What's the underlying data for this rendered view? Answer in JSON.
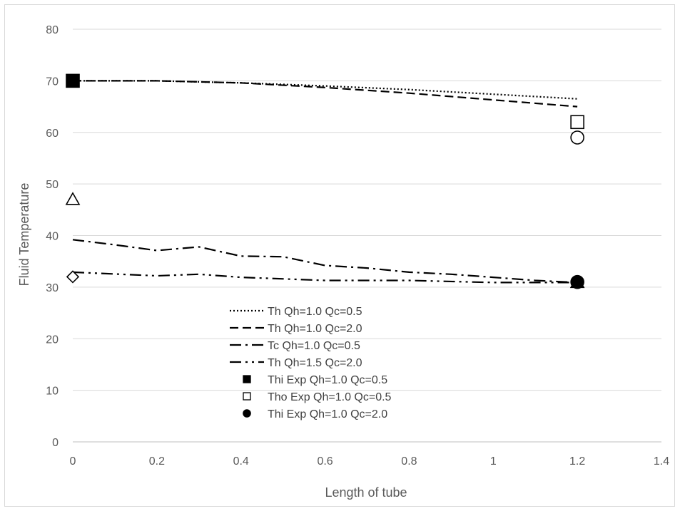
{
  "chart_data": {
    "type": "line",
    "title": "",
    "xlabel": "Length of tube",
    "ylabel": "Fluid Temperature",
    "xlim": [
      0,
      1.4
    ],
    "ylim": [
      0,
      80
    ],
    "xticks": [
      0,
      0.2,
      0.4,
      0.6,
      0.8,
      1,
      1.2,
      1.4
    ],
    "xtick_labels": [
      "0",
      "0.2",
      "0.4",
      "0.6",
      "0.8",
      "1",
      "1.2",
      "1.4"
    ],
    "yticks": [
      0,
      10,
      20,
      30,
      40,
      50,
      60,
      70,
      80
    ],
    "ytick_labels": [
      "0",
      "10",
      "20",
      "30",
      "40",
      "50",
      "60",
      "70",
      "80"
    ],
    "grid": "horizontal",
    "legend_position": "inside-bottom-center",
    "line_series": [
      {
        "name": "Th Qh=1.0 Qc=0.5",
        "dash": "dotted",
        "x": [
          0,
          0.2,
          0.4,
          0.6,
          0.8,
          1.0,
          1.2
        ],
        "y": [
          70,
          70,
          69.6,
          69.0,
          68.3,
          67.4,
          66.5
        ]
      },
      {
        "name": "Th Qh=1.0 Qc=2.0",
        "dash": "dashed",
        "x": [
          0,
          0.2,
          0.4,
          0.6,
          0.8,
          1.0,
          1.2
        ],
        "y": [
          70,
          70,
          69.6,
          68.7,
          67.6,
          66.3,
          65.0
        ]
      },
      {
        "name": "Tc Qh=1.0 Qc=0.5",
        "dash": "dash-dot",
        "x": [
          0,
          0.1,
          0.2,
          0.3,
          0.4,
          0.5,
          0.6,
          0.7,
          0.8,
          0.9,
          1.0,
          1.1,
          1.2
        ],
        "y": [
          39.2,
          38.2,
          37.1,
          37.8,
          36.0,
          35.9,
          34.2,
          33.7,
          32.9,
          32.5,
          31.9,
          31.3,
          30.9
        ]
      },
      {
        "name": "Th Qh=1.5 Qc=2.0",
        "dash": "dash-dot-dot",
        "x": [
          0,
          0.2,
          0.3,
          0.4,
          0.6,
          0.8,
          1.0,
          1.2
        ],
        "y": [
          32.9,
          32.2,
          32.5,
          31.9,
          31.3,
          31.3,
          30.9,
          30.9
        ]
      }
    ],
    "marker_series": [
      {
        "name": "Thi Exp Qh=1.0 Qc=0.5",
        "marker": "square-filled",
        "x": [
          0
        ],
        "y": [
          70
        ]
      },
      {
        "name": "Tho Exp Qh=1.0 Qc=0.5",
        "marker": "square-open",
        "x": [
          1.2
        ],
        "y": [
          62
        ]
      },
      {
        "name": "Thi Exp Qh=1.0 Qc=2.0",
        "marker": "circle-filled",
        "x": [
          1.2
        ],
        "y": [
          31
        ]
      },
      {
        "name": "",
        "marker": "circle-open",
        "x": [
          1.2
        ],
        "y": [
          59
        ]
      },
      {
        "name": "",
        "marker": "triangle-open",
        "x": [
          0
        ],
        "y": [
          47
        ]
      },
      {
        "name": "",
        "marker": "triangle-filled",
        "x": [
          1.2
        ],
        "y": [
          30.9
        ]
      },
      {
        "name": "",
        "marker": "diamond-open",
        "x": [
          0
        ],
        "y": [
          32
        ]
      }
    ],
    "legend_entries": [
      {
        "label": "Th Qh=1.0 Qc=0.5",
        "symbol": "dotted"
      },
      {
        "label": "Th Qh=1.0 Qc=2.0",
        "symbol": "dashed"
      },
      {
        "label": "Tc Qh=1.0 Qc=0.5",
        "symbol": "dash-dot"
      },
      {
        "label": "Th Qh=1.5 Qc=2.0",
        "symbol": "dash-dot-dot"
      },
      {
        "label": "Thi Exp Qh=1.0 Qc=0.5",
        "symbol": "square-filled"
      },
      {
        "label": "Tho Exp Qh=1.0 Qc=0.5",
        "symbol": "square-open"
      },
      {
        "label": "Thi Exp Qh=1.0 Qc=2.0",
        "symbol": "circle-filled"
      }
    ],
    "colors": {
      "line": "#000000",
      "grid": "#d9d9d9",
      "text": "#595959"
    }
  }
}
